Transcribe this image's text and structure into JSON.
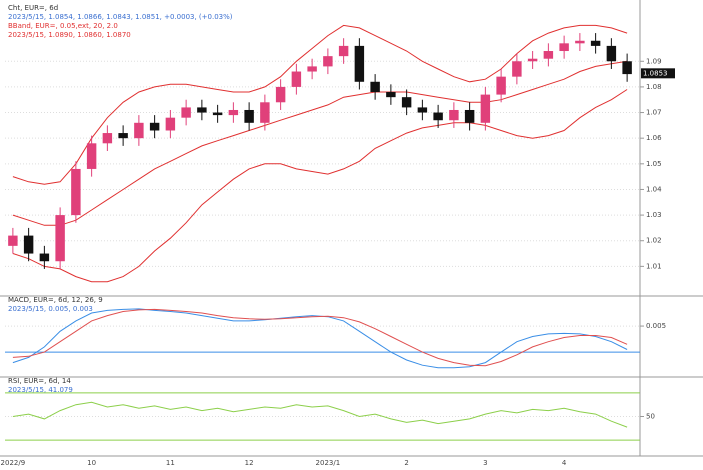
{
  "chart_data": [
    {
      "type": "candlestick",
      "title": "Cht, EUR=, 6d",
      "subtitle": "2023/5/15, 1.0854, 1.0866, 1.0843, 1.0851, +0.0003, (+0.03%)",
      "annotations": [
        "BBand, EUR=, 0.05,ext, 20, 2.0",
        "2023/5/15, 1.0890, 1.0860, 1.0870"
      ],
      "categories": [
        "2022/9",
        null,
        null,
        null,
        null,
        "10",
        null,
        null,
        null,
        null,
        "11",
        null,
        null,
        null,
        null,
        "12",
        null,
        null,
        null,
        null,
        "2023/1",
        null,
        null,
        null,
        null,
        "2",
        null,
        null,
        null,
        null,
        "3",
        null,
        null,
        null,
        null,
        "4",
        null,
        null,
        null,
        null
      ],
      "open": [
        1.018,
        1.022,
        1.015,
        1.012,
        1.03,
        1.048,
        1.058,
        1.062,
        1.06,
        1.066,
        1.063,
        1.068,
        1.072,
        1.07,
        1.069,
        1.071,
        1.066,
        1.074,
        1.08,
        1.086,
        1.088,
        1.092,
        1.096,
        1.082,
        1.078,
        1.076,
        1.072,
        1.07,
        1.067,
        1.071,
        1.066,
        1.077,
        1.084,
        1.09,
        1.091,
        1.094,
        1.097,
        1.098,
        1.096,
        1.09
      ],
      "high": [
        1.025,
        1.025,
        1.018,
        1.033,
        1.051,
        1.061,
        1.065,
        1.065,
        1.069,
        1.069,
        1.071,
        1.075,
        1.075,
        1.073,
        1.074,
        1.074,
        1.077,
        1.083,
        1.089,
        1.091,
        1.095,
        1.099,
        1.099,
        1.085,
        1.081,
        1.079,
        1.075,
        1.073,
        1.074,
        1.074,
        1.08,
        1.087,
        1.093,
        1.094,
        1.097,
        1.1,
        1.101,
        1.101,
        1.099,
        1.093
      ],
      "low": [
        1.015,
        1.012,
        1.009,
        1.009,
        1.027,
        1.045,
        1.055,
        1.057,
        1.057,
        1.06,
        1.06,
        1.065,
        1.067,
        1.066,
        1.066,
        1.063,
        1.063,
        1.071,
        1.077,
        1.083,
        1.085,
        1.089,
        1.079,
        1.075,
        1.073,
        1.069,
        1.067,
        1.064,
        1.064,
        1.063,
        1.063,
        1.074,
        1.081,
        1.087,
        1.088,
        1.091,
        1.094,
        1.093,
        1.087,
        1.082
      ],
      "close": [
        1.022,
        1.015,
        1.012,
        1.03,
        1.048,
        1.058,
        1.062,
        1.06,
        1.066,
        1.063,
        1.068,
        1.072,
        1.07,
        1.069,
        1.071,
        1.066,
        1.074,
        1.08,
        1.086,
        1.088,
        1.092,
        1.096,
        1.082,
        1.078,
        1.076,
        1.072,
        1.07,
        1.067,
        1.071,
        1.066,
        1.077,
        1.084,
        1.09,
        1.091,
        1.094,
        1.097,
        1.098,
        1.096,
        1.09,
        1.085
      ],
      "up_color": "#e0407a",
      "down_color": "#111111",
      "series": [
        {
          "color": "#e03030",
          "values": [
            1.045,
            1.043,
            1.042,
            1.043,
            1.05,
            1.06,
            1.068,
            1.074,
            1.078,
            1.08,
            1.081,
            1.081,
            1.08,
            1.079,
            1.078,
            1.078,
            1.08,
            1.084,
            1.09,
            1.095,
            1.1,
            1.104,
            1.103,
            1.1,
            1.097,
            1.094,
            1.09,
            1.087,
            1.084,
            1.082,
            1.083,
            1.087,
            1.093,
            1.098,
            1.101,
            1.103,
            1.104,
            1.104,
            1.103,
            1.101
          ]
        },
        {
          "color": "#e03030",
          "values": [
            1.03,
            1.028,
            1.026,
            1.026,
            1.028,
            1.032,
            1.036,
            1.04,
            1.044,
            1.048,
            1.051,
            1.054,
            1.057,
            1.059,
            1.061,
            1.063,
            1.065,
            1.067,
            1.069,
            1.071,
            1.073,
            1.076,
            1.077,
            1.078,
            1.078,
            1.078,
            1.077,
            1.076,
            1.075,
            1.074,
            1.074,
            1.075,
            1.077,
            1.079,
            1.081,
            1.083,
            1.086,
            1.088,
            1.089,
            1.09
          ]
        },
        {
          "color": "#e03030",
          "values": [
            1.015,
            1.013,
            1.01,
            1.009,
            1.006,
            1.004,
            1.004,
            1.006,
            1.01,
            1.016,
            1.021,
            1.027,
            1.034,
            1.039,
            1.044,
            1.048,
            1.05,
            1.05,
            1.048,
            1.047,
            1.046,
            1.048,
            1.051,
            1.056,
            1.059,
            1.062,
            1.064,
            1.065,
            1.066,
            1.066,
            1.065,
            1.063,
            1.061,
            1.06,
            1.061,
            1.063,
            1.068,
            1.072,
            1.075,
            1.079
          ]
        }
      ],
      "last_price": 1.0853,
      "ylim": [
        1.0,
        1.11
      ],
      "yticks": [
        1.01,
        1.02,
        1.03,
        1.04,
        1.05,
        1.06,
        1.07,
        1.08,
        1.09
      ],
      "grid": true
    },
    {
      "type": "line",
      "title": "MACD, EUR=, 6d, 12, 26, 9",
      "subtitle": "2023/5/15, 0.005, 0.003",
      "series": [
        {
          "color": "#3a8ee6",
          "values": [
            -0.002,
            -0.001,
            0.001,
            0.004,
            0.006,
            0.0075,
            0.008,
            0.0082,
            0.0083,
            0.008,
            0.0078,
            0.0075,
            0.007,
            0.0065,
            0.006,
            0.006,
            0.0062,
            0.0065,
            0.0068,
            0.007,
            0.0068,
            0.006,
            0.004,
            0.002,
            0.0,
            -0.0015,
            -0.0025,
            -0.003,
            -0.003,
            -0.0028,
            -0.002,
            0.0,
            0.002,
            0.003,
            0.0035,
            0.0036,
            0.0035,
            0.003,
            0.002,
            0.0005
          ]
        },
        {
          "color": "#e05050",
          "values": [
            -0.001,
            -0.0008,
            0.0,
            0.002,
            0.004,
            0.006,
            0.007,
            0.0078,
            0.0081,
            0.0082,
            0.008,
            0.0078,
            0.0075,
            0.007,
            0.0066,
            0.0064,
            0.0063,
            0.0064,
            0.0066,
            0.0068,
            0.0069,
            0.0066,
            0.0058,
            0.0045,
            0.003,
            0.0015,
            0.0,
            -0.0012,
            -0.002,
            -0.0025,
            -0.0026,
            -0.0018,
            -0.0005,
            0.001,
            0.002,
            0.0028,
            0.0032,
            0.0032,
            0.0028,
            0.0015
          ]
        }
      ],
      "hlines": [
        0
      ],
      "hline_color": "#3a8ee6",
      "ylim": [
        -0.004,
        0.01
      ],
      "yticks": [
        0.005
      ],
      "grid": true
    },
    {
      "type": "line",
      "title": "RSI, EUR=, 6d, 14",
      "subtitle": "2023/5/15, 41.079",
      "series": [
        {
          "color": "#8ccf4a",
          "values": [
            50,
            52,
            48,
            55,
            60,
            62,
            58,
            60,
            57,
            59,
            56,
            58,
            55,
            57,
            54,
            56,
            58,
            57,
            60,
            58,
            59,
            55,
            50,
            52,
            48,
            45,
            47,
            44,
            46,
            48,
            52,
            55,
            53,
            56,
            55,
            57,
            54,
            52,
            46,
            41
          ]
        }
      ],
      "hlines": [
        30,
        70
      ],
      "hline_color": "#8ccf4a",
      "ylim": [
        20,
        80
      ],
      "yticks": [
        50
      ],
      "grid": true
    }
  ]
}
